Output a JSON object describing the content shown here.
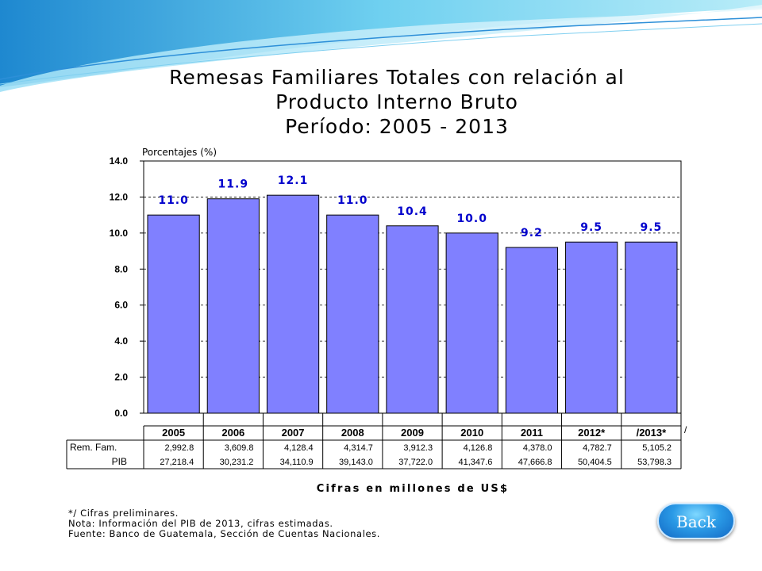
{
  "title_lines": [
    "Remesas Familiares Totales con relación al",
    "Producto Interno Bruto",
    "Período: 2005 - 2013"
  ],
  "chart_data": {
    "type": "bar",
    "ylabel": "Porcentajes (%)",
    "ylim": [
      0,
      14
    ],
    "yticks": [
      "0.0",
      "2.0",
      "4.0",
      "6.0",
      "8.0",
      "10.0",
      "12.0",
      "14.0"
    ],
    "grid": "horizontal dashed",
    "bar_color": "#8080ff",
    "label_color": "#0000cc",
    "categories": [
      "2005",
      "2006",
      "2007",
      "2008",
      "2009",
      "2010",
      "2011",
      "2012*",
      "/2013*"
    ],
    "values": [
      11.0,
      11.9,
      12.1,
      11.0,
      10.4,
      10.0,
      9.2,
      9.5,
      9.5
    ],
    "data_labels": [
      "11.0",
      "11.9",
      "12.1",
      "11.0",
      "10.4",
      "10.0",
      "9.2",
      "9.5",
      "9.5"
    ],
    "table": {
      "row_labels": [
        "Rem. Fam.",
        "PIB"
      ],
      "rem_fam": [
        "2,992.8",
        "3,609.8",
        "4,128.4",
        "4,314.7",
        "3,912.3",
        "4,126.8",
        "4,378.0",
        "4,782.7",
        "5,105.2"
      ],
      "pib": [
        "27,218.4",
        "30,231.2",
        "34,110.9",
        "39,143.0",
        "37,722.0",
        "41,347.6",
        "47,666.8",
        "50,404.5",
        "53,798.3"
      ],
      "trailing_mark": "/"
    },
    "xlabel": "Cifras en millones de US$"
  },
  "notes": [
    "*/ Cifras preliminares.",
    "Nota: Información del PIB de 2013, cifras estimadas.",
    "Fuente: Banco de Guatemala, Sección de Cuentas Nacionales."
  ],
  "back_button": {
    "label": "Back"
  }
}
